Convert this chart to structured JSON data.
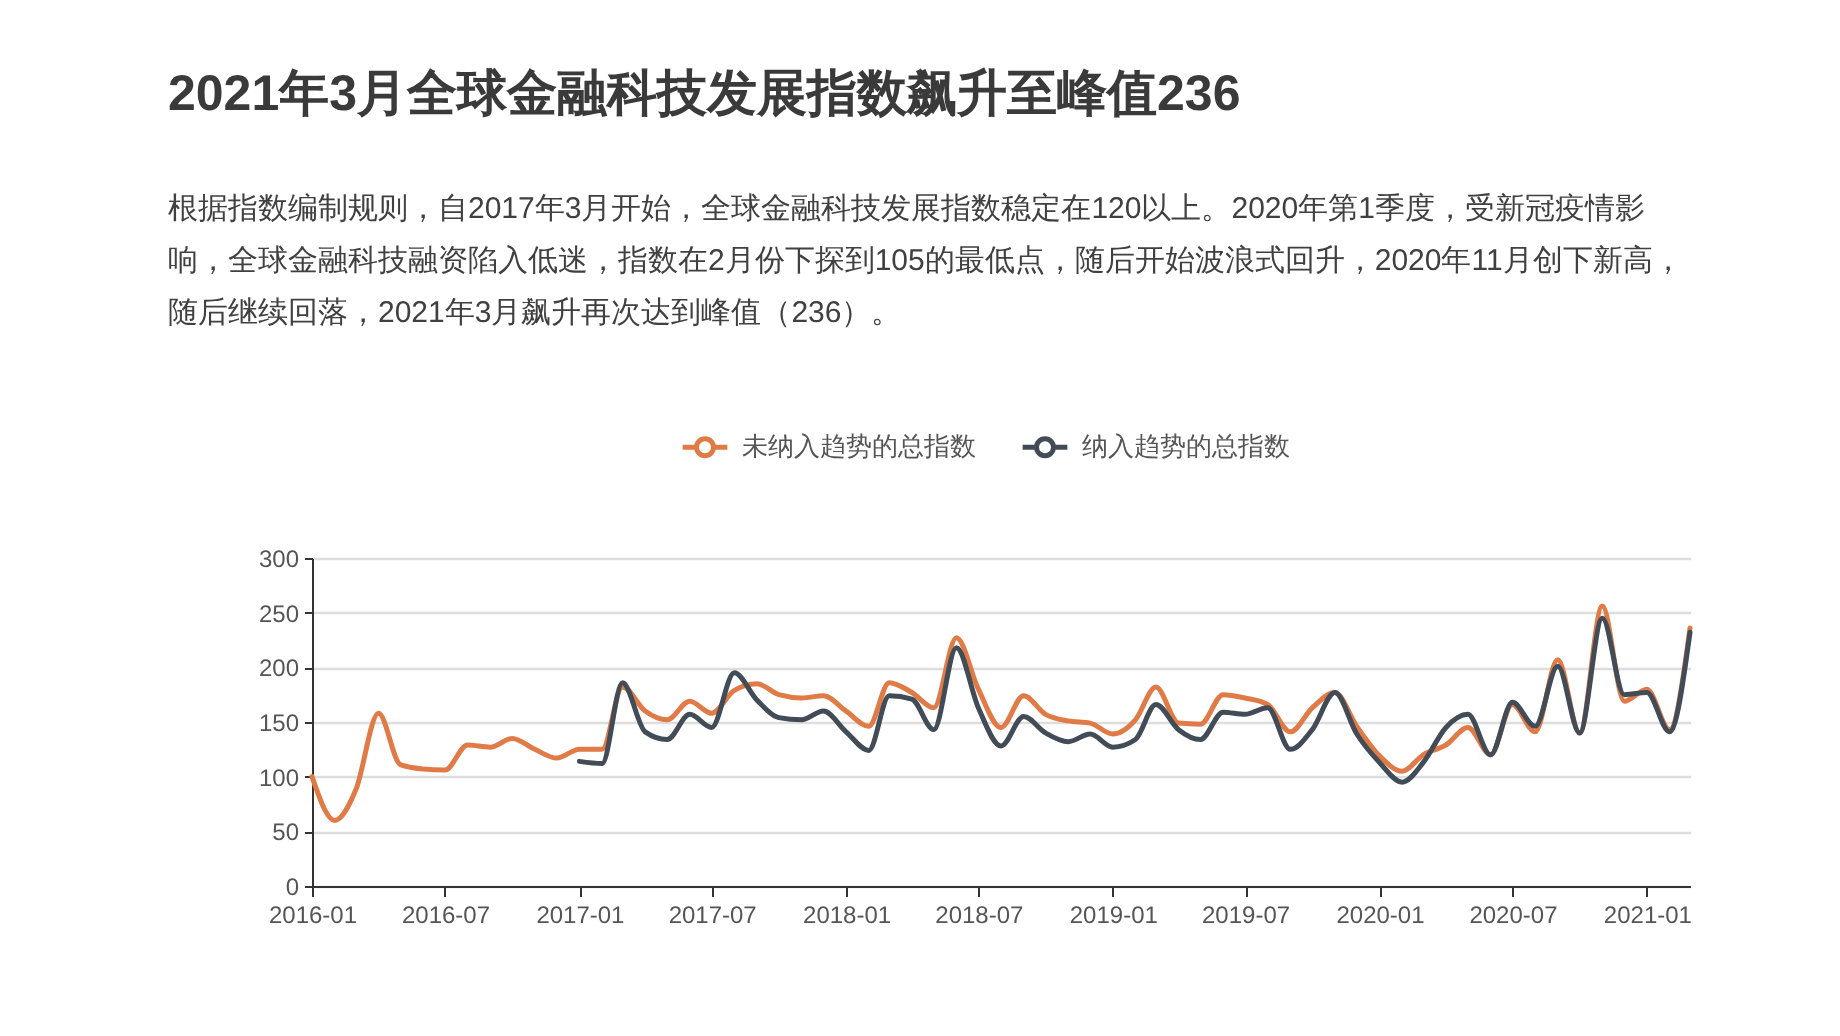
{
  "chart_data": {
    "type": "line",
    "title": "2021年3月全球金融科技发展指数飙升至峰值236",
    "subtitle": "根据指数编制规则，自2017年3月开始，全球金融科技发展指数稳定在120以上。2020年第1季度，受新冠疫情影响，全球金融科技融资陷入低迷，指数在2月份下探到105的最低点，随后开始波浪式回升，2020年11月创下新高，随后继续回落，2021年3月飙升再次达到峰值（236）。",
    "x": [
      "2016-01",
      "2016-02",
      "2016-03",
      "2016-04",
      "2016-05",
      "2016-06",
      "2016-07",
      "2016-08",
      "2016-09",
      "2016-10",
      "2016-11",
      "2016-12",
      "2017-01",
      "2017-02",
      "2017-03",
      "2017-04",
      "2017-05",
      "2017-06",
      "2017-07",
      "2017-08",
      "2017-09",
      "2017-10",
      "2017-11",
      "2017-12",
      "2018-01",
      "2018-02",
      "2018-03",
      "2018-04",
      "2018-05",
      "2018-06",
      "2018-07",
      "2018-08",
      "2018-09",
      "2018-10",
      "2018-11",
      "2018-12",
      "2019-01",
      "2019-02",
      "2019-03",
      "2019-04",
      "2019-05",
      "2019-06",
      "2019-07",
      "2019-08",
      "2019-09",
      "2019-10",
      "2019-11",
      "2019-12",
      "2020-01",
      "2020-02",
      "2020-03",
      "2020-04",
      "2020-05",
      "2020-06",
      "2020-07",
      "2020-08",
      "2020-09",
      "2020-10",
      "2020-11",
      "2020-12",
      "2021-01",
      "2021-02",
      "2021-03"
    ],
    "series": [
      {
        "name": "未纳入趋势的总指数",
        "color": "#e07b47",
        "values": [
          100,
          60,
          88,
          158,
          111,
          107,
          106,
          129,
          127,
          135,
          125,
          117,
          125,
          125,
          182,
          160,
          152,
          169,
          158,
          179,
          185,
          175,
          172,
          174,
          160,
          146,
          186,
          177,
          163,
          227,
          180,
          145,
          174,
          157,
          151,
          149,
          139,
          152,
          182,
          149,
          148,
          175,
          172,
          166,
          141,
          163,
          177,
          146,
          119,
          105,
          120,
          129,
          145,
          120,
          166,
          141,
          207,
          140,
          256,
          169,
          180,
          143,
          236
        ]
      },
      {
        "name": "纳入趋势的总指数",
        "color": "#414c56",
        "values": [
          null,
          null,
          null,
          null,
          null,
          null,
          null,
          null,
          null,
          null,
          null,
          null,
          114,
          112,
          186,
          141,
          134,
          157,
          145,
          195,
          170,
          154,
          152,
          160,
          141,
          124,
          174,
          171,
          143,
          218,
          163,
          128,
          155,
          140,
          132,
          139,
          127,
          134,
          166,
          143,
          134,
          159,
          157,
          163,
          125,
          143,
          177,
          139,
          113,
          95,
          113,
          145,
          157,
          120,
          168,
          146,
          201,
          140,
          245,
          175,
          177,
          141,
          232
        ]
      }
    ],
    "xlim": [
      "2016-01",
      "2021-03"
    ],
    "xticks": [
      "2016-01",
      "2016-07",
      "2017-01",
      "2017-07",
      "2018-01",
      "2018-07",
      "2019-01",
      "2019-07",
      "2020-01",
      "2020-07",
      "2021-01"
    ],
    "ylim": [
      0,
      300
    ],
    "yticks": [
      0,
      50,
      100,
      150,
      200,
      250,
      300
    ],
    "grid": "y",
    "legend": "top"
  }
}
